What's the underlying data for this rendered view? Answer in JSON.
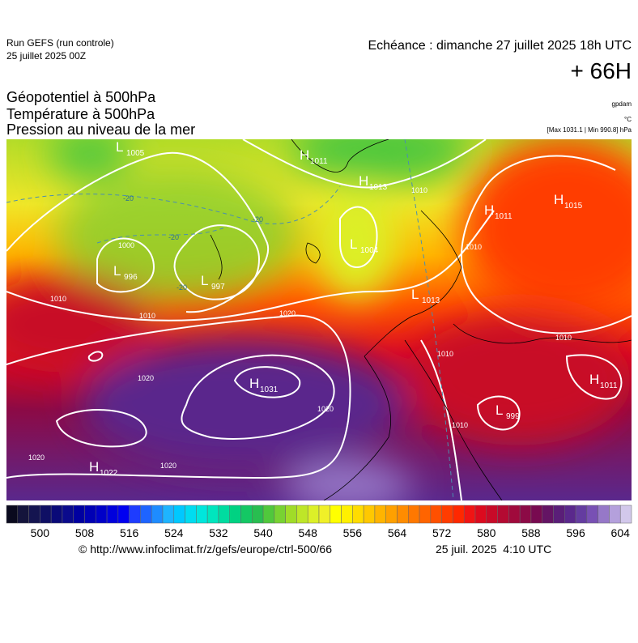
{
  "header": {
    "run": "Run GEFS (run controle)",
    "run_date": "25 juillet 2025 00Z",
    "valid": "Echéance : dimanche 27 juillet 2025 18h UTC",
    "lead": "+ 66H",
    "fields": [
      "Géopotentiel à 500hPa",
      "Température à 500hPa",
      "Pression au niveau de la mer"
    ],
    "units": [
      "gpdam",
      "°C",
      "[Max 1031.1 | Min 990.8] hPa"
    ]
  },
  "centers": [
    {
      "kind": "H",
      "value": 1011
    },
    {
      "kind": "H",
      "value": 1013
    },
    {
      "kind": "H",
      "value": 1011
    },
    {
      "kind": "H",
      "value": 1015
    },
    {
      "kind": "L",
      "value": 1005
    },
    {
      "kind": "L",
      "value": 996
    },
    {
      "kind": "L",
      "value": 997
    },
    {
      "kind": "L",
      "value": 1004
    },
    {
      "kind": "L",
      "value": 1013
    },
    {
      "kind": "H",
      "value": 1031
    },
    {
      "kind": "H",
      "value": 1022
    },
    {
      "kind": "H",
      "value": 1011
    },
    {
      "kind": "L",
      "value": 999
    }
  ],
  "isobar_labels": [
    1010,
    1010,
    1020,
    1020,
    1020,
    1020,
    1020,
    1000,
    1010,
    1010,
    1010,
    1010,
    1010
  ],
  "temperature_labels": [
    -20,
    -20,
    -20,
    -20
  ],
  "colorbar": {
    "range": [
      494,
      606
    ],
    "ticks": [
      500,
      508,
      516,
      524,
      532,
      540,
      548,
      556,
      564,
      572,
      580,
      588,
      596,
      604
    ],
    "colors": [
      "#0a0a1e",
      "#14143c",
      "#141450",
      "#0f0f64",
      "#0a0a78",
      "#0a0a8c",
      "#0000a0",
      "#0000b4",
      "#0000c8",
      "#0000dc",
      "#0000f0",
      "#1e3cff",
      "#1e64ff",
      "#1e8cff",
      "#1eb4ff",
      "#00c8ff",
      "#00dcf0",
      "#00e6dc",
      "#00e6be",
      "#00dca0",
      "#00d282",
      "#14c864",
      "#28be50",
      "#50c83c",
      "#78d232",
      "#a0dc28",
      "#bee628",
      "#dcf028",
      "#f0f028",
      "#ffff00",
      "#fff000",
      "#ffdc00",
      "#ffc800",
      "#ffb400",
      "#ffa000",
      "#ff8c00",
      "#ff7800",
      "#ff6400",
      "#ff5000",
      "#ff3c00",
      "#ff2800",
      "#f01414",
      "#dc0a1e",
      "#c80a28",
      "#b40a32",
      "#a00a3c",
      "#8c0a46",
      "#780a50",
      "#641464",
      "#5a1e78",
      "#5a288c",
      "#643ca0",
      "#7850b4",
      "#9678c8",
      "#b4a0dc",
      "#d2c8eb"
    ]
  },
  "footer": {
    "source": "© http://www.infoclimat.fr/z/gefs/europe/ctrl-500/66",
    "generated": "25 juil. 2025  4:10 UTC"
  }
}
